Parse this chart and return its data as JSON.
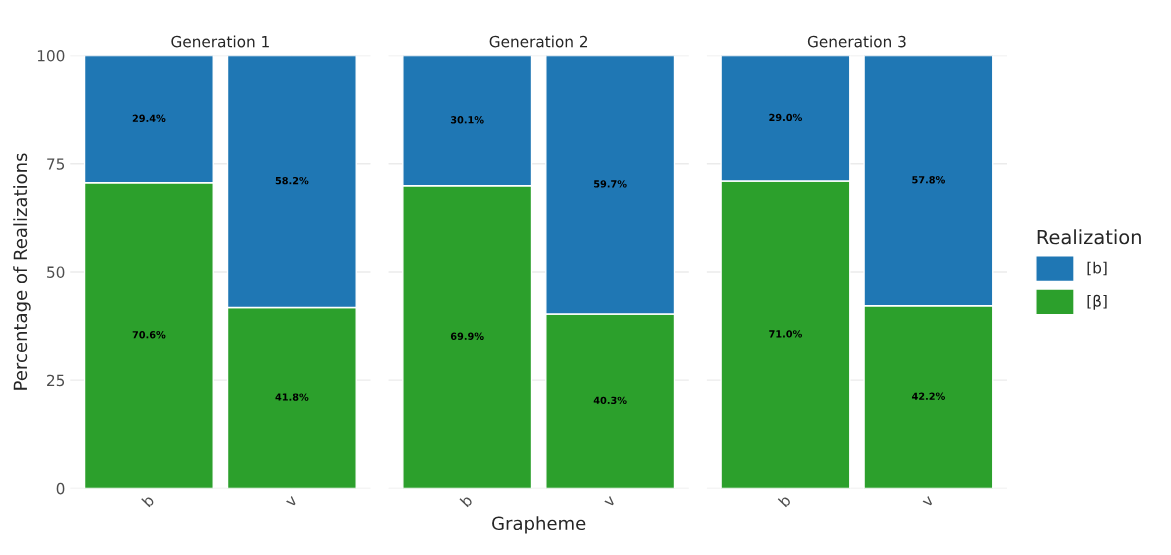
{
  "chart_data": [
    {
      "type": "bar",
      "title": "Generation 1",
      "ylabel": "Percentage of Realizations",
      "categories": [
        "b",
        "v"
      ],
      "stacked": true,
      "ylim": [
        0,
        100
      ],
      "yticks": [
        0,
        25,
        50,
        75,
        100
      ],
      "grid": true,
      "series": [
        {
          "color": "#2ca02c",
          "values": [
            70.6,
            41.8
          ],
          "value_labels": [
            "70.6%",
            "41.8%"
          ]
        },
        {
          "color": "#1f77b4",
          "values": [
            29.4,
            58.2
          ],
          "value_labels": [
            "29.4%",
            "58.2%"
          ]
        }
      ]
    },
    {
      "type": "bar",
      "title": "Generation 2",
      "xlabel": "Grapheme",
      "categories": [
        "b",
        "v"
      ],
      "stacked": true,
      "ylim": [
        0,
        100
      ],
      "yticks": [
        0,
        25,
        50,
        75,
        100
      ],
      "grid": true,
      "tick_labels": "x",
      "series": [
        {
          "color": "#2ca02c",
          "values": [
            69.9,
            40.3
          ],
          "value_labels": [
            "69.9%",
            "40.3%"
          ]
        },
        {
          "color": "#1f77b4",
          "values": [
            30.1,
            59.7
          ],
          "value_labels": [
            "30.1%",
            "59.7%"
          ]
        }
      ]
    },
    {
      "type": "bar",
      "title": "Generation 3",
      "categories": [
        "b",
        "v"
      ],
      "stacked": true,
      "ylim": [
        0,
        100
      ],
      "yticks": [
        0,
        25,
        50,
        75,
        100
      ],
      "grid": true,
      "legend": "right",
      "legend_title": "Realization",
      "tick_labels": "x",
      "series": [
        {
          "name": "[β]",
          "color": "#2ca02c",
          "values": [
            71.0,
            42.2
          ],
          "value_labels": [
            "71.0%",
            "42.2%"
          ]
        },
        {
          "name": "[b]",
          "color": "#1f77b4",
          "values": [
            29.0,
            57.8
          ],
          "value_labels": [
            "29.0%",
            "57.8%"
          ]
        }
      ]
    }
  ]
}
